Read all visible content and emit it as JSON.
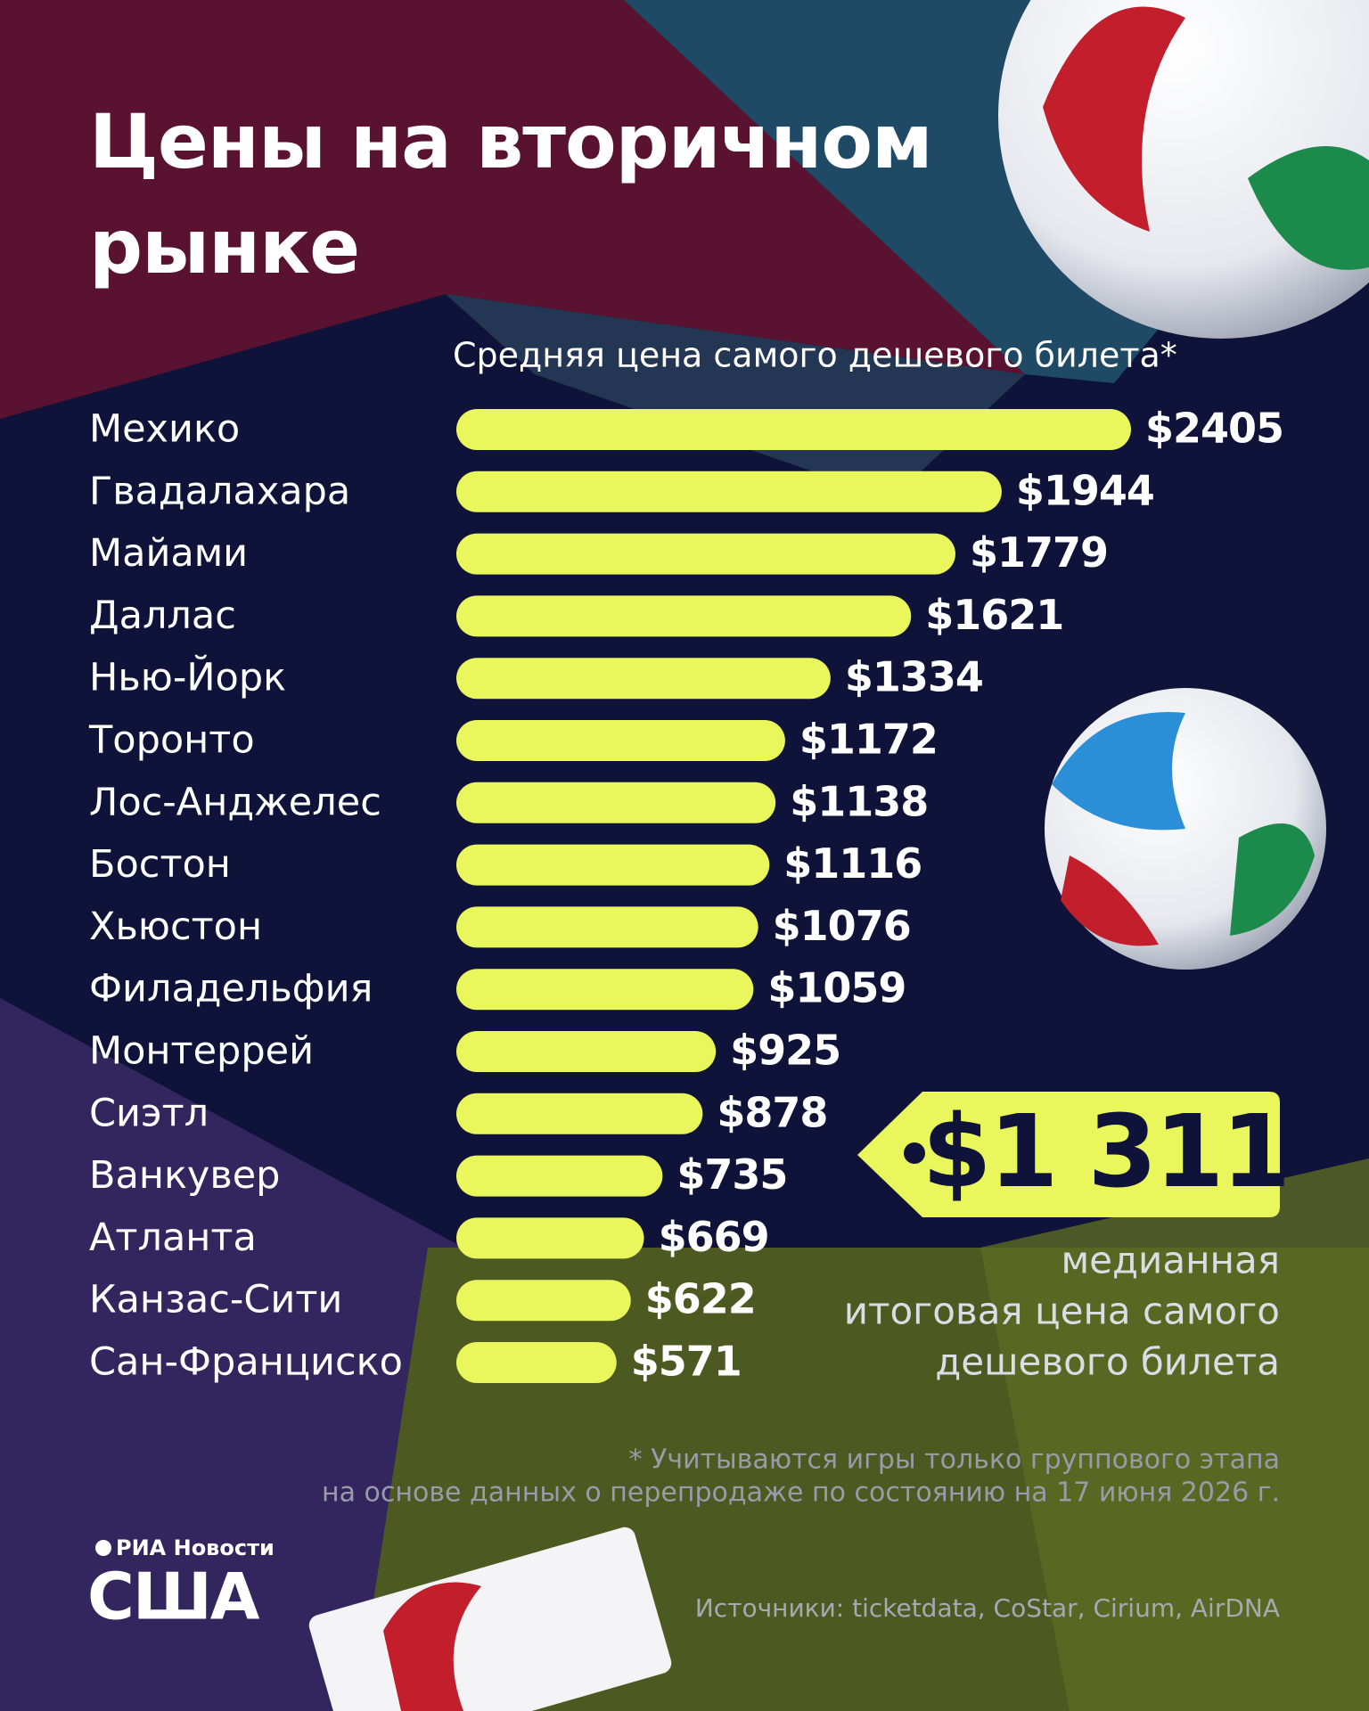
{
  "chart_data": {
    "type": "bar",
    "title": "Цены на вторичном рынке",
    "subtitle": "Средняя цена самого дешевого билета*",
    "categories": [
      "Мехико",
      "Гвадалахара",
      "Майами",
      "Даллас",
      "Нью-Йорк",
      "Торонто",
      "Лос-Анджелес",
      "Бостон",
      "Хьюстон",
      "Филадельфия",
      "Монтеррей",
      "Сиэтл",
      "Ванкувер",
      "Атланта",
      "Канзас-Сити",
      "Сан-Франциско"
    ],
    "values": [
      2405,
      1944,
      1779,
      1621,
      1334,
      1172,
      1138,
      1116,
      1076,
      1059,
      925,
      878,
      735,
      669,
      622,
      571
    ],
    "value_labels": [
      "$2405",
      "$1944",
      "$1779",
      "$1621",
      "$1334",
      "$1172",
      "$1138",
      "$1116",
      "$1076",
      "$1059",
      "$925",
      "$878",
      "$735",
      "$669",
      "$622",
      "$571"
    ],
    "color": "#e9f65c",
    "callout": {
      "value": 1311,
      "label": "$1 311",
      "text_lines": [
        "медианная",
        "итоговая цена самого",
        "дешевого билета"
      ]
    },
    "notes": [
      "* Учитываются игры только группового этапа",
      "на основе данных о перепродаже по состоянию на 17 июня 2026 г."
    ],
    "brand": {
      "agency": "РИА Новости",
      "name": "США"
    },
    "sources": "Источники: ticketdata, CoStar, Cirium, AirDNA"
  }
}
